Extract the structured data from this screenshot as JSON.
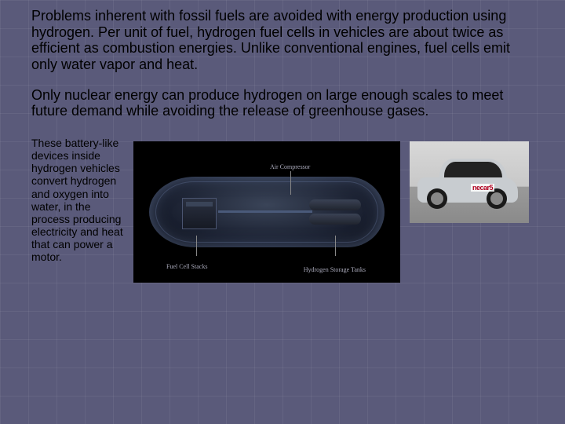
{
  "para1": "Problems inherent with fossil fuels are avoided with energy production using hydrogen.  Per unit of fuel, hydrogen fuel cells in vehicles are about twice as efficient as combustion energies.  Unlike conventional engines, fuel cells emit only water vapor and heat.",
  "para2": "Only nuclear energy can produce hydrogen on large enough scales to meet future demand while avoiding the release of greenhouse gases.",
  "para3": "These battery-like devices inside hydrogen vehicles convert hydrogen and oxygen into water, in the process producing electricity and heat that can power a motor.",
  "diagram": {
    "air_compressor_label": "Air Compressor",
    "fuel_cell_stacks_label": "Fuel Cell Stacks",
    "hydrogen_tanks_label": "Hydrogen\nStorage Tanks"
  },
  "car_photo": {
    "brand_text": "necar5"
  },
  "colors": {
    "background": "#5a5a7a",
    "text": "#000000",
    "diagram_bg": "#000000",
    "label_color": "#aaaabb"
  }
}
